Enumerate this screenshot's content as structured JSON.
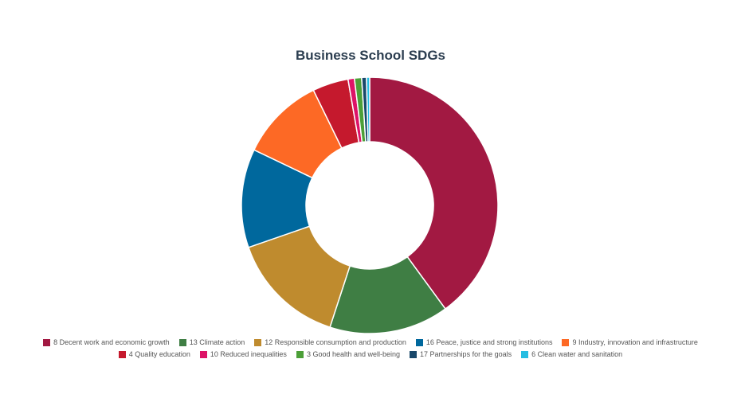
{
  "chart_data": {
    "type": "pie",
    "title": "Business School SDGs",
    "legend_position": "bottom",
    "donut": true,
    "categories": [
      "8 Decent work and economic growth",
      "13 Climate action",
      "12 Responsible consumption and production",
      "16 Peace, justice and strong institutions",
      "9 Industry, innovation and infrastructure",
      "4 Quality education",
      "10 Reduced inequalities",
      "3 Good health and well-being",
      "17 Partnerships for the goals",
      "6 Clean water and sanitation"
    ],
    "values": [
      39.8,
      15.0,
      14.6,
      12.4,
      10.6,
      4.5,
      0.8,
      0.9,
      0.6,
      0.4
    ],
    "colors": [
      "#a21942",
      "#3f7e44",
      "#bf8b2e",
      "#00689d",
      "#fd6925",
      "#c5192d",
      "#dd1367",
      "#4c9f38",
      "#19486a",
      "#26bde2"
    ]
  }
}
